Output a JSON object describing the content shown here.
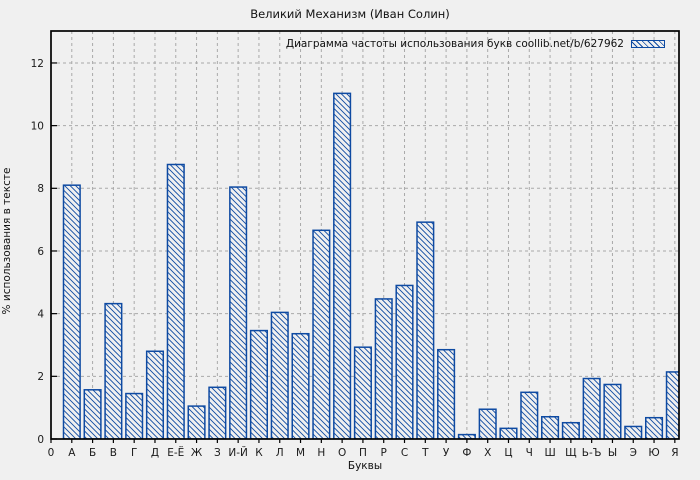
{
  "window": {
    "title": "Великий Механизм (Иван Солин)"
  },
  "chart_data": {
    "type": "bar",
    "title": "Великий Механизм (Иван Солин)",
    "legend_label": "Диаграмма частоты использования букв coollib.net/b/627962",
    "legend_position": "top-right-inside",
    "xlabel": "Буквы",
    "ylabel": "% использования в тексте",
    "origin_label": "0",
    "categories": [
      "А",
      "Б",
      "В",
      "Г",
      "Д",
      "Е-Ё",
      "Ж",
      "З",
      "И-Й",
      "К",
      "Л",
      "М",
      "Н",
      "О",
      "П",
      "Р",
      "С",
      "Т",
      "У",
      "Ф",
      "Х",
      "Ц",
      "Ч",
      "Ш",
      "Щ",
      "Ь-Ъ",
      "Ы",
      "Э",
      "Ю",
      "Я"
    ],
    "values": [
      8.1,
      1.57,
      4.32,
      1.45,
      2.8,
      8.76,
      1.05,
      1.65,
      8.04,
      3.46,
      4.04,
      3.36,
      6.66,
      11.03,
      2.93,
      4.47,
      4.9,
      6.92,
      2.85,
      0.14,
      0.95,
      0.34,
      1.49,
      0.71,
      0.52,
      1.93,
      1.74,
      0.4,
      0.68,
      2.14
    ],
    "y_ticks": [
      0,
      2,
      4,
      6,
      8,
      10,
      12
    ],
    "ylim": [
      0,
      13.02
    ],
    "grid": true,
    "hatch": "diagonal-backslash",
    "colors": {
      "bar": "#0e4aa2",
      "grid": "#a9a9a9",
      "frame": "#000000",
      "background": "#f0f0f0",
      "text": "#1a1a1a"
    }
  }
}
